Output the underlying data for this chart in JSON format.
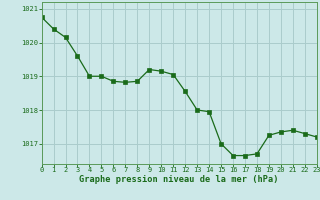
{
  "x": [
    0,
    1,
    2,
    3,
    4,
    5,
    6,
    7,
    8,
    9,
    10,
    11,
    12,
    13,
    14,
    15,
    16,
    17,
    18,
    19,
    20,
    21,
    22,
    23
  ],
  "y": [
    1020.75,
    1020.4,
    1020.15,
    1019.6,
    1019.0,
    1019.0,
    1018.85,
    1018.82,
    1018.85,
    1019.2,
    1019.15,
    1019.05,
    1018.55,
    1018.0,
    1017.95,
    1017.0,
    1016.65,
    1016.65,
    1016.7,
    1017.25,
    1017.35,
    1017.4,
    1017.3,
    1017.2
  ],
  "xlim": [
    0,
    23
  ],
  "ylim": [
    1016.4,
    1021.2
  ],
  "yticks": [
    1017,
    1018,
    1019,
    1020,
    1021
  ],
  "xticks": [
    0,
    1,
    2,
    3,
    4,
    5,
    6,
    7,
    8,
    9,
    10,
    11,
    12,
    13,
    14,
    15,
    16,
    17,
    18,
    19,
    20,
    21,
    22,
    23
  ],
  "line_color": "#1a6b1a",
  "marker_color": "#1a6b1a",
  "bg_color": "#cce8e8",
  "grid_color": "#aacccc",
  "xlabel": "Graphe pression niveau de la mer (hPa)",
  "xlabel_color": "#1a6b1a",
  "tick_color": "#1a6b1a",
  "spine_color": "#5a9a5a",
  "tick_fontsize": 5.0,
  "xlabel_fontsize": 6.2
}
